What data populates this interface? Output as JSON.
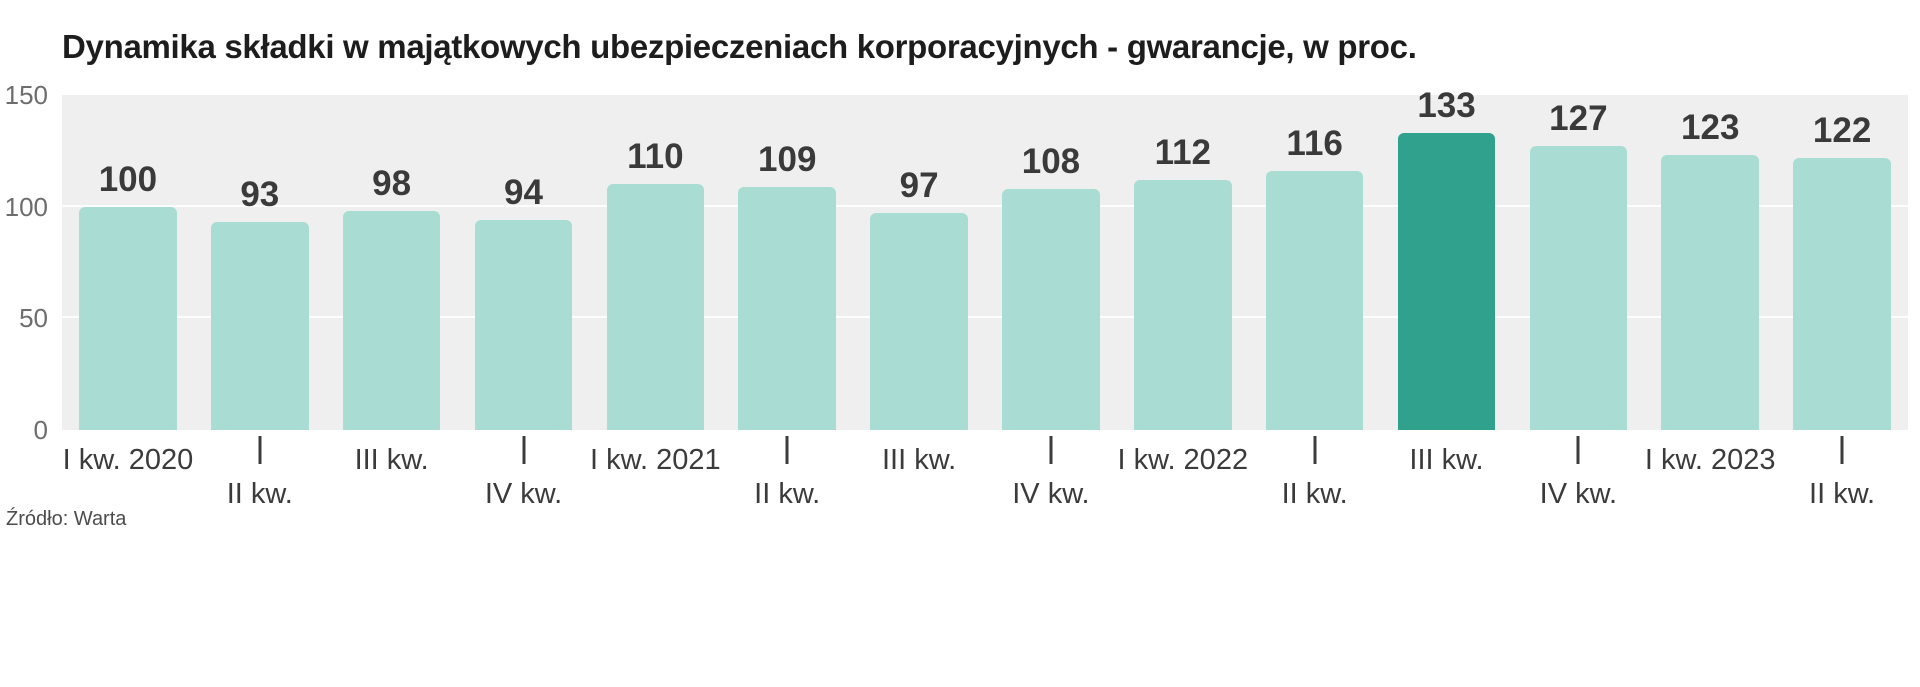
{
  "title": "Dynamika składki w majątkowych ubezpieczeniach korporacyjnych - gwarancje, w proc.",
  "source": "Źródło: Warta",
  "chart_data": {
    "type": "bar",
    "title": "Dynamika składki w majątkowych ubezpieczeniach korporacyjnych - gwarancje, w proc.",
    "categories": [
      "I kw. 2020",
      "II kw.",
      "III kw.",
      "IV kw.",
      "I kw. 2021",
      "II kw.",
      "III kw.",
      "IV kw.",
      "I kw. 2022",
      "II kw.",
      "III kw.",
      "IV kw.",
      "I kw. 2023",
      "II kw."
    ],
    "values": [
      100,
      93,
      98,
      94,
      110,
      109,
      97,
      108,
      112,
      116,
      133,
      127,
      123,
      122
    ],
    "xlabel": "",
    "ylabel": "",
    "ylim": [
      0,
      150
    ],
    "yticks": [
      0,
      50,
      100,
      150
    ],
    "gridline_values": [
      50,
      100
    ],
    "highlight_index": 10,
    "bar_color": "#a9ddd3",
    "highlight_color": "#2fa18c",
    "plot_background": "#efefef",
    "grid": true,
    "legend_position": "none",
    "source": "Źródło: Warta"
  }
}
